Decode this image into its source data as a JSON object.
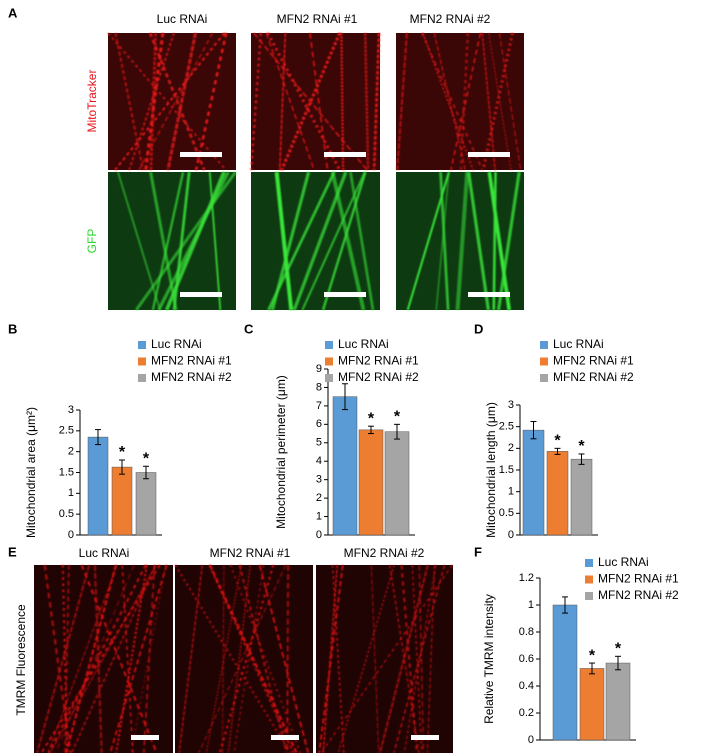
{
  "figure": {
    "panel_labels": [
      "A",
      "B",
      "C",
      "D",
      "E",
      "F"
    ],
    "panel_a": {
      "columns": [
        "Luc RNAi",
        "MFN2 RNAi #1",
        "MFN2 RNAi #2"
      ],
      "rows": [
        "MitoTracker",
        "GFP"
      ]
    },
    "panel_e": {
      "columns": [
        "Luc RNAi",
        "MFN2 RNAi #1",
        "MFN2 RNAi #2"
      ],
      "row": "TMRM Fluorescence"
    }
  },
  "chart_data": [
    {
      "type": "bar",
      "ylabel": "Mitochondrial area (μm²)",
      "ylim": [
        0,
        3
      ],
      "yticks": [
        0,
        0.5,
        1,
        1.5,
        2,
        2.5,
        3
      ],
      "series": [
        {
          "name": "Luc RNAi",
          "color": "#5b9bd5",
          "values": [
            2.35
          ],
          "errors": [
            0.18
          ]
        },
        {
          "name": "MFN2 RNAi #1",
          "color": "#ed7d31",
          "values": [
            1.63
          ],
          "errors": [
            0.17
          ],
          "marker": "*"
        },
        {
          "name": "MFN2 RNAi #2",
          "color": "#a5a5a5",
          "values": [
            1.5
          ],
          "errors": [
            0.15
          ],
          "marker": "*"
        }
      ]
    },
    {
      "type": "bar",
      "ylabel": "Mitochondrial perimeter (μm)",
      "ylim": [
        0,
        9
      ],
      "yticks": [
        0,
        1,
        2,
        3,
        4,
        5,
        6,
        7,
        8,
        9
      ],
      "series": [
        {
          "name": "Luc RNAi",
          "color": "#5b9bd5",
          "values": [
            7.5
          ],
          "errors": [
            0.7
          ]
        },
        {
          "name": "MFN2 RNAi #1",
          "color": "#ed7d31",
          "values": [
            5.7
          ],
          "errors": [
            0.2
          ],
          "marker": "*"
        },
        {
          "name": "MFN2 RNAi #2",
          "color": "#a5a5a5",
          "values": [
            5.6
          ],
          "errors": [
            0.4
          ],
          "marker": "*"
        }
      ]
    },
    {
      "type": "bar",
      "ylabel": "Mitochondrial length (μm)",
      "ylim": [
        0,
        3
      ],
      "yticks": [
        0,
        0.5,
        1,
        1.5,
        2,
        2.5,
        3
      ],
      "series": [
        {
          "name": "Luc RNAi",
          "color": "#5b9bd5",
          "values": [
            2.42
          ],
          "errors": [
            0.2
          ]
        },
        {
          "name": "MFN2 RNAi #1",
          "color": "#ed7d31",
          "values": [
            1.93
          ],
          "errors": [
            0.07
          ],
          "marker": "*"
        },
        {
          "name": "MFN2 RNAi #2",
          "color": "#a5a5a5",
          "values": [
            1.75
          ],
          "errors": [
            0.12
          ],
          "marker": "*"
        }
      ]
    },
    {
      "type": "bar",
      "ylabel": "Relative TMRM intensity",
      "ylim": [
        0,
        1.2
      ],
      "yticks": [
        0,
        0.2,
        0.4,
        0.6,
        0.8,
        1,
        1.2
      ],
      "series": [
        {
          "name": "Luc RNAi",
          "color": "#5b9bd5",
          "values": [
            1.0
          ],
          "errors": [
            0.06
          ]
        },
        {
          "name": "MFN2 RNAi #1",
          "color": "#ed7d31",
          "values": [
            0.53
          ],
          "errors": [
            0.04
          ],
          "marker": "*"
        },
        {
          "name": "MFN2 RNAi #2",
          "color": "#a5a5a5",
          "values": [
            0.57
          ],
          "errors": [
            0.05
          ],
          "marker": "*"
        }
      ]
    }
  ]
}
